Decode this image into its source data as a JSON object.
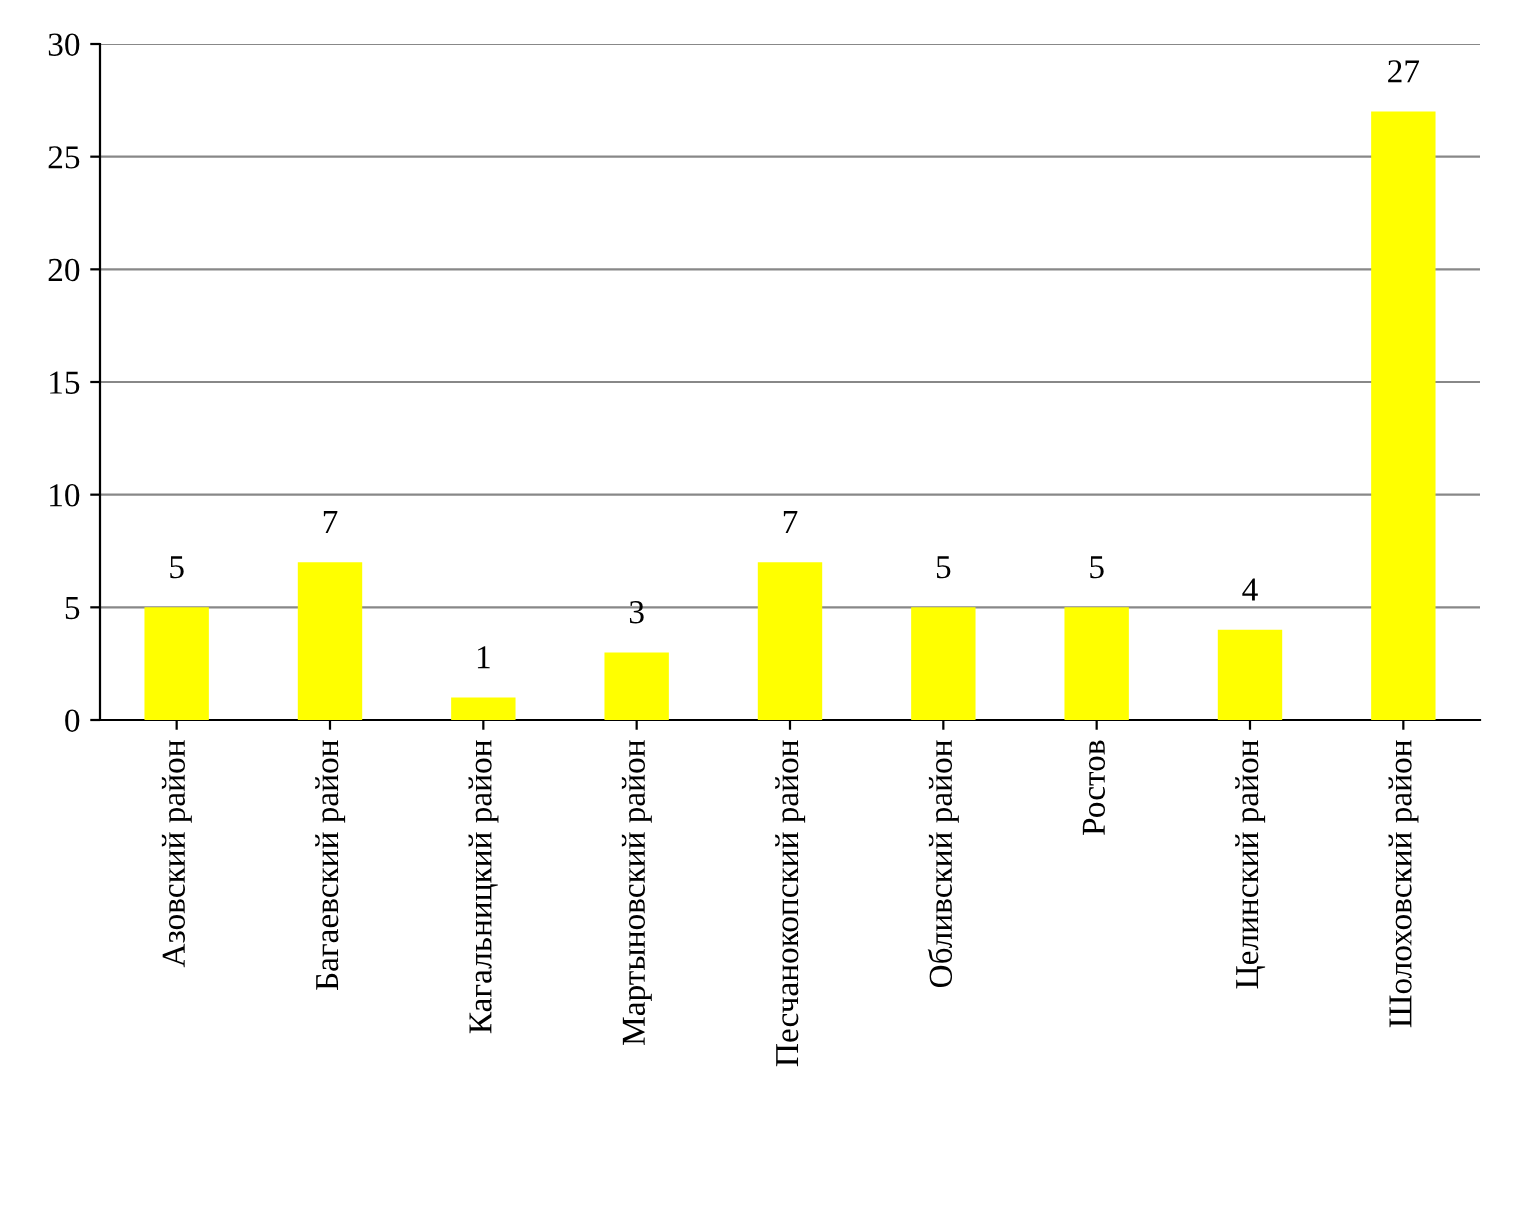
{
  "chart_data": {
    "type": "bar",
    "categories": [
      "Азовский район",
      "Багаевский район",
      "Кагальницкий район",
      "Мартыновский район",
      "Песчанокопский район",
      "Обливский район",
      "Ростов",
      "Целинский район",
      "Шолоховский район"
    ],
    "values": [
      5,
      7,
      1,
      3,
      7,
      5,
      5,
      4,
      27
    ],
    "color": "#ffff00",
    "ylim": [
      0,
      30
    ],
    "yticks": [
      0,
      5,
      10,
      15,
      20,
      25,
      30
    ],
    "grid": "y",
    "data_labels": true,
    "legend": false
  }
}
